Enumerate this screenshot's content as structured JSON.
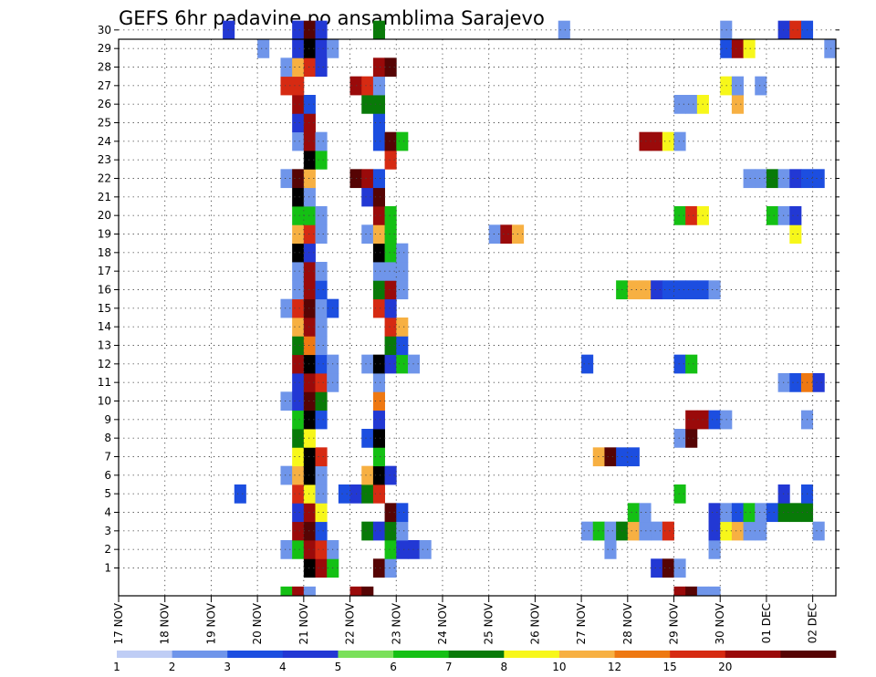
{
  "chart_data": {
    "type": "heatmap",
    "title": "GEFS 6hr padavine po ansamblima Sarajevo",
    "xlabel": "",
    "ylabel": "",
    "x_start": "17 NOV 00Z",
    "x_step_hours": 6,
    "x_count": 62,
    "x_tick_labels": [
      "17 NOV",
      "18 NOV",
      "19 NOV",
      "20 NOV",
      "21 NOV",
      "22 NOV",
      "23 NOV",
      "24 NOV",
      "25 NOV",
      "26 NOV",
      "27 NOV",
      "28 NOV",
      "29 NOV",
      "30 NOV",
      "01 DEC",
      "02 DEC"
    ],
    "y_tick_labels": [
      "1",
      "2",
      "3",
      "4",
      "5",
      "6",
      "7",
      "8",
      "9",
      "10",
      "11",
      "12",
      "13",
      "14",
      "15",
      "16",
      "17",
      "18",
      "19",
      "20",
      "21",
      "22",
      "23",
      "24",
      "25",
      "26",
      "27",
      "28",
      "29",
      "30"
    ],
    "ylim": [
      0,
      30
    ],
    "grid": "dotted",
    "colorbar": {
      "labels": [
        "1",
        "2",
        "3",
        "4",
        "5",
        "6",
        "7",
        "8",
        "10",
        "12",
        "15",
        "20"
      ],
      "colors": [
        "#bfcdf5",
        "#6f95ea",
        "#1c4ee0",
        "#2238d4",
        "#7ae05a",
        "#14c014",
        "#087a08",
        "#f7f71a",
        "#f7b042",
        "#ee7812",
        "#d62a12",
        "#9a0a0a",
        "#560404"
      ]
    },
    "legend": "colorbar-bottom",
    "cells": {
      "30": [
        [
          9,
          3
        ],
        [
          15,
          3
        ],
        [
          16,
          12
        ],
        [
          17,
          3
        ],
        [
          22,
          6
        ],
        [
          38,
          1
        ],
        [
          52,
          1
        ],
        [
          57,
          3
        ],
        [
          58,
          10
        ],
        [
          59,
          2
        ]
      ],
      "29": [
        [
          12,
          1
        ],
        [
          15,
          3
        ],
        [
          16,
          13
        ],
        [
          17,
          3
        ],
        [
          18,
          1
        ],
        [
          52,
          2
        ],
        [
          53,
          11
        ],
        [
          54,
          7
        ],
        [
          61,
          1
        ]
      ],
      "28": [
        [
          14,
          1
        ],
        [
          15,
          8
        ],
        [
          16,
          10
        ],
        [
          17,
          3
        ],
        [
          22,
          11
        ],
        [
          23,
          12
        ]
      ],
      "27": [
        [
          14,
          10
        ],
        [
          15,
          10
        ],
        [
          20,
          11
        ],
        [
          21,
          10
        ],
        [
          22,
          1
        ],
        [
          52,
          7
        ],
        [
          53,
          1
        ],
        [
          55,
          1
        ]
      ],
      "26": [
        [
          15,
          11
        ],
        [
          16,
          2
        ],
        [
          21,
          6
        ],
        [
          22,
          6
        ],
        [
          48,
          1
        ],
        [
          49,
          1
        ],
        [
          50,
          7
        ],
        [
          53,
          8
        ]
      ],
      "25": [
        [
          15,
          3
        ],
        [
          16,
          11
        ],
        [
          22,
          2
        ]
      ],
      "24": [
        [
          15,
          1
        ],
        [
          16,
          11
        ],
        [
          17,
          1
        ],
        [
          22,
          2
        ],
        [
          23,
          12
        ],
        [
          24,
          5
        ],
        [
          45,
          11
        ],
        [
          46,
          11
        ],
        [
          47,
          7
        ],
        [
          48,
          1
        ]
      ],
      "23": [
        [
          16,
          13
        ],
        [
          17,
          5
        ],
        [
          23,
          10
        ]
      ],
      "22": [
        [
          14,
          1
        ],
        [
          15,
          12
        ],
        [
          16,
          8
        ],
        [
          20,
          12
        ],
        [
          21,
          11
        ],
        [
          22,
          2
        ],
        [
          54,
          1
        ],
        [
          55,
          1
        ],
        [
          56,
          6
        ],
        [
          57,
          1
        ],
        [
          58,
          3
        ],
        [
          59,
          2
        ],
        [
          60,
          2
        ]
      ],
      "21": [
        [
          15,
          13
        ],
        [
          16,
          1
        ],
        [
          21,
          3
        ],
        [
          22,
          12
        ]
      ],
      "20": [
        [
          15,
          5
        ],
        [
          16,
          5
        ],
        [
          17,
          1
        ],
        [
          22,
          11
        ],
        [
          23,
          5
        ],
        [
          48,
          5
        ],
        [
          49,
          10
        ],
        [
          50,
          7
        ],
        [
          56,
          5
        ],
        [
          57,
          1
        ],
        [
          58,
          3
        ]
      ],
      "19": [
        [
          15,
          8
        ],
        [
          16,
          10
        ],
        [
          17,
          1
        ],
        [
          21,
          1
        ],
        [
          22,
          8
        ],
        [
          23,
          5
        ],
        [
          32,
          1
        ],
        [
          33,
          11
        ],
        [
          34,
          8
        ],
        [
          58,
          7
        ]
      ],
      "18": [
        [
          15,
          13
        ],
        [
          16,
          3
        ],
        [
          22,
          13
        ],
        [
          23,
          5
        ],
        [
          24,
          1
        ]
      ],
      "17": [
        [
          15,
          1
        ],
        [
          16,
          11
        ],
        [
          17,
          1
        ],
        [
          22,
          1
        ],
        [
          23,
          1
        ],
        [
          24,
          1
        ]
      ],
      "16": [
        [
          15,
          1
        ],
        [
          16,
          11
        ],
        [
          17,
          2
        ],
        [
          22,
          6
        ],
        [
          23,
          11
        ],
        [
          24,
          1
        ],
        [
          43,
          5
        ],
        [
          44,
          8
        ],
        [
          45,
          8
        ],
        [
          46,
          3
        ],
        [
          47,
          2
        ],
        [
          48,
          2
        ],
        [
          49,
          2
        ],
        [
          50,
          2
        ],
        [
          51,
          1
        ]
      ],
      "15": [
        [
          14,
          1
        ],
        [
          15,
          10
        ],
        [
          16,
          12
        ],
        [
          17,
          1
        ],
        [
          18,
          2
        ],
        [
          22,
          10
        ],
        [
          23,
          3
        ]
      ],
      "14": [
        [
          15,
          8
        ],
        [
          16,
          11
        ],
        [
          17,
          1
        ],
        [
          23,
          10
        ],
        [
          24,
          8
        ]
      ],
      "13": [
        [
          15,
          6
        ],
        [
          16,
          9
        ],
        [
          17,
          1
        ],
        [
          23,
          6
        ],
        [
          24,
          2
        ]
      ],
      "12": [
        [
          15,
          11
        ],
        [
          16,
          13
        ],
        [
          17,
          2
        ],
        [
          18,
          1
        ],
        [
          21,
          1
        ],
        [
          22,
          13
        ],
        [
          23,
          3
        ],
        [
          24,
          5
        ],
        [
          25,
          1
        ],
        [
          40,
          2
        ],
        [
          48,
          2
        ],
        [
          49,
          5
        ]
      ],
      "11": [
        [
          15,
          3
        ],
        [
          16,
          11
        ],
        [
          17,
          10
        ],
        [
          18,
          1
        ],
        [
          22,
          1
        ],
        [
          57,
          1
        ],
        [
          58,
          2
        ],
        [
          59,
          9
        ],
        [
          60,
          3
        ]
      ],
      "10": [
        [
          14,
          1
        ],
        [
          15,
          3
        ],
        [
          16,
          12
        ],
        [
          17,
          6
        ],
        [
          22,
          9
        ]
      ],
      "9": [
        [
          15,
          5
        ],
        [
          16,
          13
        ],
        [
          17,
          2
        ],
        [
          22,
          3
        ],
        [
          49,
          11
        ],
        [
          50,
          11
        ],
        [
          51,
          2
        ],
        [
          52,
          1
        ],
        [
          59,
          1
        ]
      ],
      "8": [
        [
          15,
          6
        ],
        [
          16,
          7
        ],
        [
          21,
          2
        ],
        [
          22,
          13
        ],
        [
          48,
          1
        ],
        [
          49,
          12
        ]
      ],
      "7": [
        [
          15,
          7
        ],
        [
          16,
          13
        ],
        [
          17,
          10
        ],
        [
          22,
          5
        ],
        [
          41,
          8
        ],
        [
          42,
          12
        ],
        [
          43,
          2
        ],
        [
          44,
          2
        ]
      ],
      "6": [
        [
          14,
          1
        ],
        [
          15,
          8
        ],
        [
          16,
          13
        ],
        [
          17,
          1
        ],
        [
          21,
          8
        ],
        [
          22,
          13
        ],
        [
          23,
          3
        ]
      ],
      "5": [
        [
          10,
          2
        ],
        [
          15,
          10
        ],
        [
          16,
          7
        ],
        [
          17,
          1
        ],
        [
          19,
          2
        ],
        [
          20,
          3
        ],
        [
          21,
          6
        ],
        [
          22,
          10
        ],
        [
          48,
          5
        ],
        [
          57,
          3
        ],
        [
          59,
          2
        ]
      ],
      "4": [
        [
          15,
          3
        ],
        [
          16,
          11
        ],
        [
          17,
          7
        ],
        [
          23,
          12
        ],
        [
          24,
          2
        ],
        [
          44,
          5
        ],
        [
          45,
          1
        ],
        [
          51,
          3
        ],
        [
          52,
          1
        ],
        [
          53,
          2
        ],
        [
          54,
          5
        ],
        [
          55,
          1
        ],
        [
          56,
          2
        ],
        [
          57,
          6
        ],
        [
          58,
          6
        ],
        [
          59,
          6
        ]
      ],
      "3": [
        [
          15,
          11
        ],
        [
          16,
          12
        ],
        [
          17,
          2
        ],
        [
          21,
          6
        ],
        [
          22,
          3
        ],
        [
          23,
          6
        ],
        [
          24,
          1
        ],
        [
          40,
          1
        ],
        [
          41,
          5
        ],
        [
          42,
          1
        ],
        [
          43,
          6
        ],
        [
          44,
          8
        ],
        [
          45,
          1
        ],
        [
          46,
          1
        ],
        [
          47,
          10
        ],
        [
          51,
          3
        ],
        [
          52,
          7
        ],
        [
          53,
          8
        ],
        [
          54,
          1
        ],
        [
          55,
          1
        ],
        [
          60,
          1
        ]
      ],
      "2": [
        [
          14,
          1
        ],
        [
          15,
          5
        ],
        [
          16,
          11
        ],
        [
          17,
          10
        ],
        [
          18,
          1
        ],
        [
          23,
          5
        ],
        [
          24,
          3
        ],
        [
          25,
          3
        ],
        [
          26,
          1
        ],
        [
          42,
          1
        ],
        [
          51,
          1
        ]
      ],
      "1": [
        [
          16,
          13
        ],
        [
          17,
          11
        ],
        [
          18,
          5
        ],
        [
          22,
          12
        ],
        [
          23,
          1
        ],
        [
          46,
          3
        ],
        [
          47,
          12
        ],
        [
          48,
          1
        ]
      ],
      "0": [
        [
          14,
          5
        ],
        [
          15,
          11
        ],
        [
          16,
          1
        ],
        [
          20,
          11
        ],
        [
          21,
          12
        ],
        [
          48,
          11
        ],
        [
          49,
          12
        ],
        [
          50,
          1
        ],
        [
          51,
          1
        ]
      ]
    }
  }
}
